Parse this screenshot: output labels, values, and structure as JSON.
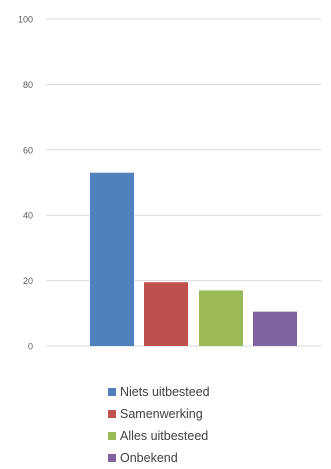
{
  "chart_data": {
    "type": "bar",
    "categories": [
      "Niets uitbesteed",
      "Samenwerking",
      "Alles uitbesteed",
      "Onbekend"
    ],
    "values": [
      53,
      19.5,
      17,
      10.5
    ],
    "colors": [
      "#4f81bd",
      "#c0504d",
      "#9bbb59",
      "#8064a2"
    ],
    "ylim": [
      0,
      100
    ],
    "yticks": [
      0,
      20,
      40,
      60,
      80,
      100
    ],
    "grid": true,
    "legend_position": "bottom"
  },
  "legend": [
    {
      "label": "Niets uitbesteed",
      "color": "#4f81bd"
    },
    {
      "label": "Samenwerking",
      "color": "#c0504d"
    },
    {
      "label": "Alles uitbesteed",
      "color": "#9bbb59"
    },
    {
      "label": "Onbekend",
      "color": "#8064a2"
    }
  ]
}
